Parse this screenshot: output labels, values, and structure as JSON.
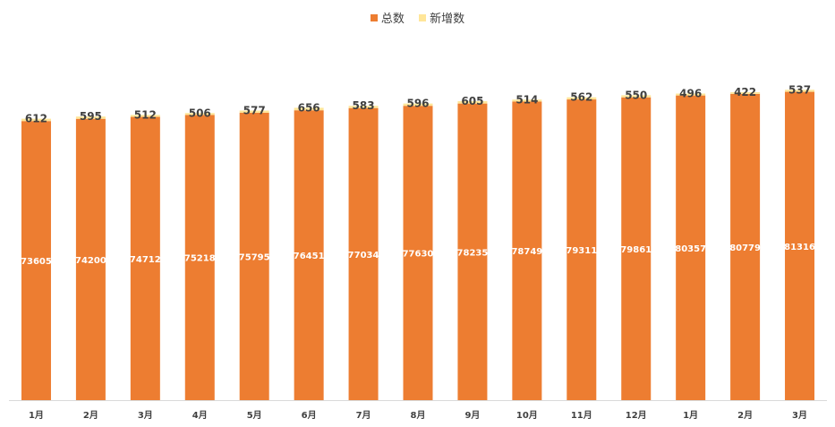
{
  "chart_data": {
    "type": "bar",
    "stacked": true,
    "categories": [
      "1月",
      "2月",
      "3月",
      "4月",
      "5月",
      "6月",
      "7月",
      "8月",
      "9月",
      "10月",
      "11月",
      "12月",
      "1月",
      "2月",
      "3月"
    ],
    "series": [
      {
        "name": "总数",
        "color": "#ED7D31",
        "values": [
          73605,
          74200,
          74712,
          75218,
          75795,
          76451,
          77034,
          77630,
          78235,
          78749,
          79311,
          79861,
          80357,
          80779,
          81316
        ]
      },
      {
        "name": "新增数",
        "color": "#FFE699",
        "values": [
          612,
          595,
          512,
          506,
          577,
          656,
          583,
          596,
          605,
          514,
          562,
          550,
          496,
          422,
          537
        ]
      }
    ],
    "ylim": [
      0,
      90000
    ],
    "grid": false,
    "legend_position": "top"
  }
}
